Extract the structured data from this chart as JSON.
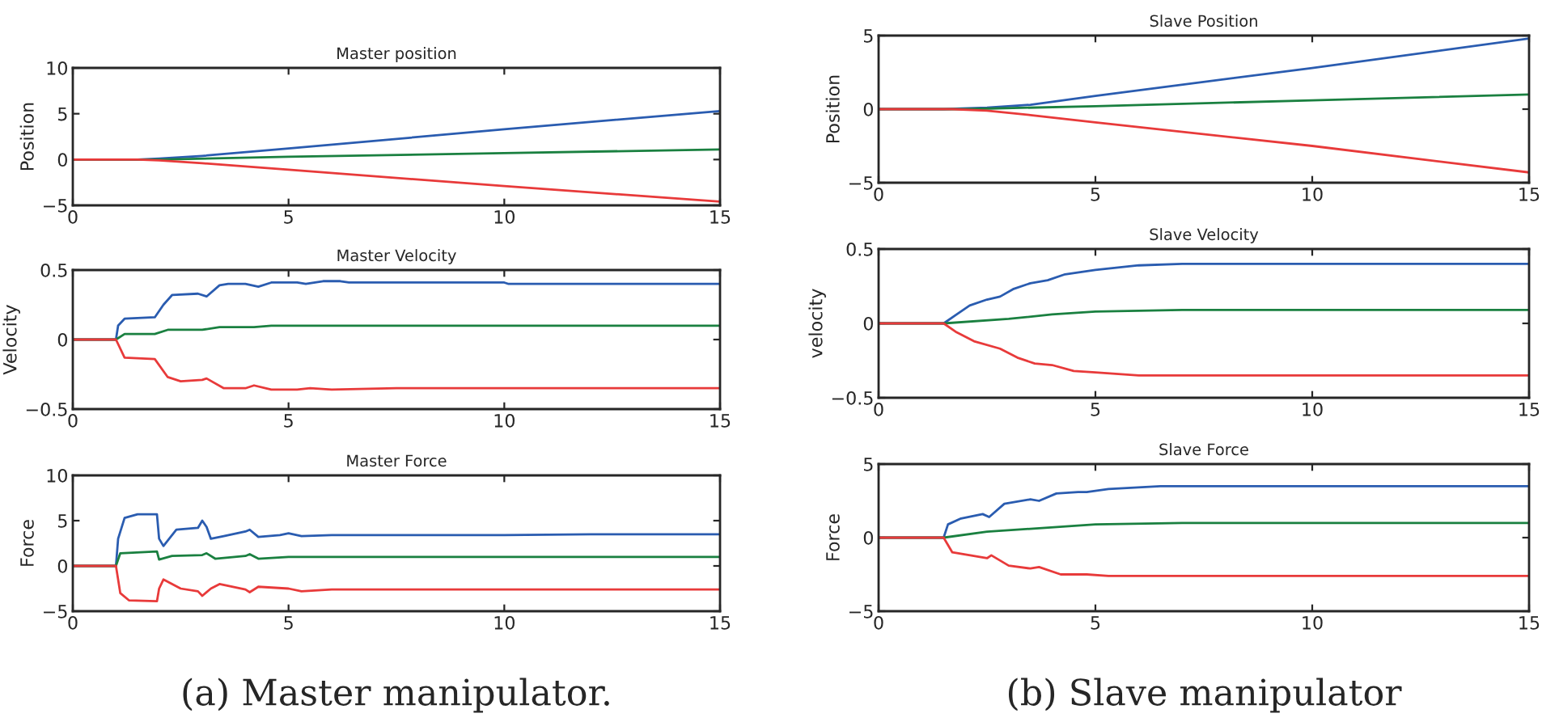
{
  "chart_data": [
    {
      "type": "line",
      "title": "Master position",
      "ylabel": "Position",
      "xlim": [
        0,
        15
      ],
      "xticks": [
        0,
        5,
        10,
        15
      ],
      "ylim": [
        -5,
        10
      ],
      "yticks": [
        -5,
        0,
        5,
        10
      ],
      "grid": false,
      "legend": false,
      "series": [
        {
          "color": "#2a5cb0",
          "x": [
            0,
            1.5,
            2,
            3,
            5,
            10,
            15
          ],
          "values": [
            0,
            0,
            0.1,
            0.4,
            1.2,
            3.3,
            5.3
          ]
        },
        {
          "color": "#1a8040",
          "x": [
            0,
            2,
            5,
            10,
            15
          ],
          "values": [
            0,
            0,
            0.3,
            0.7,
            1.1
          ]
        },
        {
          "color": "#e83a3a",
          "x": [
            0,
            1.5,
            2,
            3,
            5,
            10,
            15
          ],
          "values": [
            0,
            0,
            -0.1,
            -0.4,
            -1.1,
            -2.9,
            -4.6
          ]
        }
      ]
    },
    {
      "type": "line",
      "title": "Master Velocity",
      "ylabel": "Velocity",
      "xlim": [
        0,
        15
      ],
      "xticks": [
        0,
        5,
        10,
        15
      ],
      "ylim": [
        -0.5,
        0.5
      ],
      "yticks": [
        -0.5,
        0,
        0.5
      ],
      "grid": false,
      "legend": false,
      "series": [
        {
          "color": "#2a5cb0",
          "x": [
            0,
            1,
            1.05,
            1.2,
            1.9,
            2.1,
            2.3,
            2.9,
            3.1,
            3.4,
            3.6,
            4,
            4.3,
            4.6,
            5.2,
            5.4,
            5.8,
            6.2,
            6.4,
            10,
            10.1,
            15
          ],
          "values": [
            0,
            0,
            0.1,
            0.15,
            0.16,
            0.25,
            0.32,
            0.33,
            0.31,
            0.39,
            0.4,
            0.4,
            0.38,
            0.41,
            0.41,
            0.4,
            0.42,
            0.42,
            0.41,
            0.41,
            0.4,
            0.4
          ]
        },
        {
          "color": "#1a8040",
          "x": [
            0,
            1,
            1.2,
            1.9,
            2.2,
            3,
            3.4,
            4.2,
            4.6,
            15
          ],
          "values": [
            0,
            0,
            0.04,
            0.04,
            0.07,
            0.07,
            0.09,
            0.09,
            0.1,
            0.1
          ]
        },
        {
          "color": "#e83a3a",
          "x": [
            0,
            1,
            1.2,
            1.9,
            2.2,
            2.5,
            3,
            3.1,
            3.5,
            4,
            4.2,
            4.6,
            5.2,
            5.5,
            6,
            7.5,
            15
          ],
          "values": [
            0,
            0,
            -0.13,
            -0.14,
            -0.27,
            -0.3,
            -0.29,
            -0.28,
            -0.35,
            -0.35,
            -0.33,
            -0.36,
            -0.36,
            -0.35,
            -0.36,
            -0.35,
            -0.35
          ]
        }
      ]
    },
    {
      "type": "line",
      "title": "Master Force",
      "ylabel": "Force",
      "xlim": [
        0,
        15
      ],
      "xticks": [
        0,
        5,
        10,
        15
      ],
      "ylim": [
        -5,
        10
      ],
      "yticks": [
        -5,
        0,
        5,
        10
      ],
      "grid": false,
      "legend": false,
      "annotations": [
        "(a) Master manipulator."
      ],
      "series": [
        {
          "color": "#2a5cb0",
          "x": [
            0,
            1,
            1.05,
            1.2,
            1.5,
            1.95,
            2,
            2.1,
            2.4,
            2.9,
            3,
            3.1,
            3.2,
            3.5,
            4,
            4.1,
            4.3,
            4.8,
            5,
            5.3,
            6,
            10,
            12,
            15
          ],
          "values": [
            0,
            0,
            3,
            5.3,
            5.7,
            5.7,
            3,
            2.2,
            4,
            4.2,
            5,
            4.3,
            3,
            3.3,
            3.8,
            4,
            3.2,
            3.4,
            3.6,
            3.3,
            3.4,
            3.4,
            3.5,
            3.5
          ]
        },
        {
          "color": "#1a8040",
          "x": [
            0,
            1,
            1.1,
            1.95,
            2,
            2.3,
            3,
            3.1,
            3.3,
            4,
            4.1,
            4.3,
            5,
            15
          ],
          "values": [
            0,
            0,
            1.4,
            1.6,
            0.7,
            1.1,
            1.2,
            1.4,
            0.8,
            1.1,
            1.3,
            0.8,
            1,
            1
          ]
        },
        {
          "color": "#e83a3a",
          "x": [
            0,
            1,
            1.1,
            1.3,
            1.95,
            2,
            2.1,
            2.5,
            2.9,
            3,
            3.2,
            3.4,
            4,
            4.1,
            4.3,
            5,
            5.3,
            6,
            15
          ],
          "values": [
            0,
            0,
            -3,
            -3.8,
            -3.9,
            -2.5,
            -1.5,
            -2.5,
            -2.8,
            -3.3,
            -2.5,
            -2,
            -2.6,
            -2.9,
            -2.3,
            -2.5,
            -2.8,
            -2.6,
            -2.6
          ]
        }
      ]
    },
    {
      "type": "line",
      "title": "Slave Position",
      "ylabel": "Position",
      "xlim": [
        0,
        15
      ],
      "xticks": [
        0,
        5,
        10,
        15
      ],
      "ylim": [
        -5,
        5
      ],
      "yticks": [
        -5,
        0,
        5
      ],
      "grid": false,
      "legend": false,
      "series": [
        {
          "color": "#2a5cb0",
          "x": [
            0,
            1.5,
            2.5,
            3.5,
            5,
            10,
            15
          ],
          "values": [
            0,
            0,
            0.1,
            0.3,
            0.9,
            2.8,
            4.8
          ]
        },
        {
          "color": "#1a8040",
          "x": [
            0,
            2,
            5,
            10,
            15
          ],
          "values": [
            0,
            0,
            0.2,
            0.6,
            1
          ]
        },
        {
          "color": "#e83a3a",
          "x": [
            0,
            1.7,
            2.5,
            3.5,
            5,
            10,
            15
          ],
          "values": [
            0,
            0,
            -0.1,
            -0.4,
            -0.9,
            -2.5,
            -4.3
          ]
        }
      ]
    },
    {
      "type": "line",
      "title": "Slave Velocity",
      "ylabel": "velocity",
      "xlim": [
        0,
        15
      ],
      "xticks": [
        0,
        5,
        10,
        15
      ],
      "ylim": [
        -0.5,
        0.5
      ],
      "yticks": [
        -0.5,
        0,
        0.5
      ],
      "grid": false,
      "legend": false,
      "series": [
        {
          "color": "#2a5cb0",
          "x": [
            0,
            1.5,
            1.8,
            2.1,
            2.5,
            2.8,
            3.1,
            3.5,
            3.9,
            4.3,
            5,
            6,
            7,
            15
          ],
          "values": [
            0,
            0,
            0.06,
            0.12,
            0.16,
            0.18,
            0.23,
            0.27,
            0.29,
            0.33,
            0.36,
            0.39,
            0.4,
            0.4
          ]
        },
        {
          "color": "#1a8040",
          "x": [
            0,
            1.5,
            3,
            4,
            5,
            7,
            15
          ],
          "values": [
            0,
            0,
            0.03,
            0.06,
            0.08,
            0.09,
            0.09
          ]
        },
        {
          "color": "#e83a3a",
          "x": [
            0,
            1.5,
            1.8,
            2.2,
            2.8,
            3.2,
            3.6,
            4,
            4.5,
            5,
            6,
            8,
            15
          ],
          "values": [
            0,
            0,
            -0.06,
            -0.12,
            -0.17,
            -0.23,
            -0.27,
            -0.28,
            -0.32,
            -0.33,
            -0.35,
            -0.35,
            -0.35
          ]
        }
      ]
    },
    {
      "type": "line",
      "title": "Slave Force",
      "ylabel": "Force",
      "xlim": [
        0,
        15
      ],
      "xticks": [
        0,
        5,
        10,
        15
      ],
      "ylim": [
        -5,
        5
      ],
      "yticks": [
        -5,
        0,
        5
      ],
      "grid": false,
      "legend": false,
      "annotations": [
        "(b) Slave manipulator"
      ],
      "series": [
        {
          "color": "#2a5cb0",
          "x": [
            0,
            1.5,
            1.6,
            1.9,
            2.4,
            2.55,
            2.9,
            3.5,
            3.7,
            4.1,
            4.6,
            4.8,
            5.3,
            6.5,
            10,
            15
          ],
          "values": [
            0,
            0,
            0.9,
            1.3,
            1.6,
            1.4,
            2.3,
            2.6,
            2.5,
            3,
            3.1,
            3.1,
            3.3,
            3.5,
            3.5,
            3.5
          ]
        },
        {
          "color": "#1a8040",
          "x": [
            0,
            1.5,
            2.5,
            3.5,
            5,
            7,
            15
          ],
          "values": [
            0,
            0,
            0.4,
            0.6,
            0.9,
            1,
            1
          ]
        },
        {
          "color": "#e83a3a",
          "x": [
            0,
            1.5,
            1.7,
            2.5,
            2.6,
            3,
            3.5,
            3.7,
            4.2,
            4.8,
            5.3,
            7,
            15
          ],
          "values": [
            0,
            0,
            -1,
            -1.4,
            -1.2,
            -1.9,
            -2.1,
            -2,
            -2.5,
            -2.5,
            -2.6,
            -2.6,
            -2.6
          ]
        }
      ]
    }
  ]
}
